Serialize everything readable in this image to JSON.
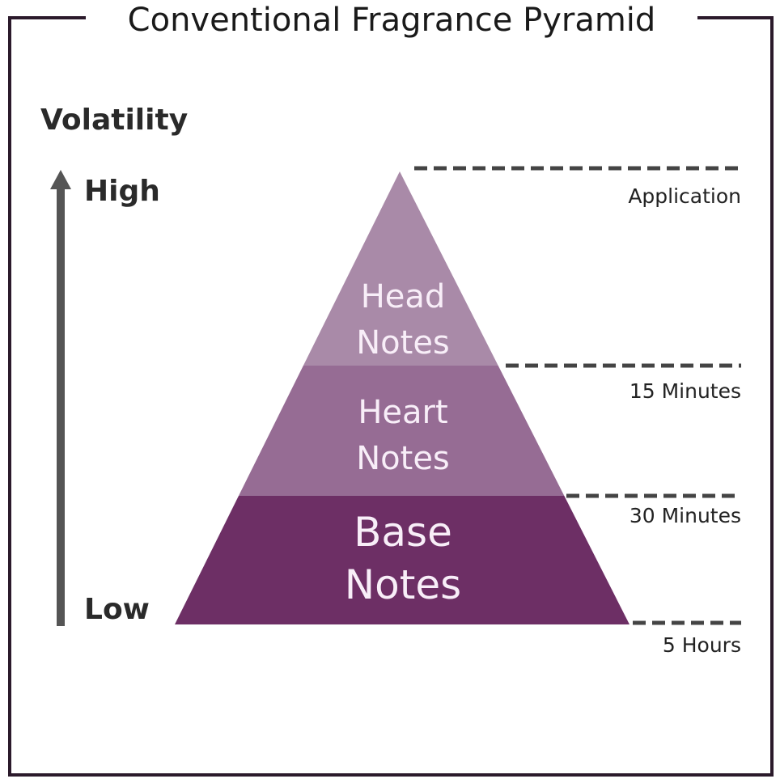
{
  "title": "Conventional Fragrance Pyramid",
  "axis": {
    "label": "Volatility",
    "high": "High",
    "low": "Low"
  },
  "layers": [
    {
      "line1": "Head",
      "line2": "Notes",
      "color": "#a98aa8"
    },
    {
      "line1": "Heart",
      "line2": "Notes",
      "color": "#966c94"
    },
    {
      "line1": "Base",
      "line2": "Notes",
      "color": "#6d2f65"
    }
  ],
  "times": [
    "Application",
    "15 Minutes",
    "30 Minutes",
    "5 Hours"
  ],
  "colors": {
    "frame": "#2b1a2b",
    "arrow": "#555555",
    "dash": "#444444",
    "layer_text": "#f8eef8"
  }
}
